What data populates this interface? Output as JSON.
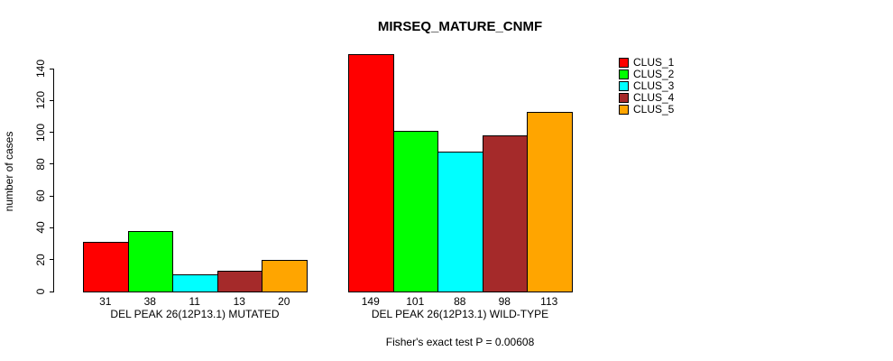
{
  "title": "MIRSEQ_MATURE_CNMF",
  "footer": "Fisher's exact test P = 0.00608",
  "chart_data": {
    "type": "bar",
    "title": "MIRSEQ_MATURE_CNMF",
    "ylabel": "number of cases",
    "xlabel": "",
    "ylim": [
      0,
      150
    ],
    "yticks": [
      0,
      20,
      40,
      60,
      80,
      100,
      120,
      140
    ],
    "grid": false,
    "legend_position": "top-right",
    "series": [
      {
        "name": "CLUS_1",
        "color": "#FF0000"
      },
      {
        "name": "CLUS_2",
        "color": "#00FF00"
      },
      {
        "name": "CLUS_3",
        "color": "#00FFFF"
      },
      {
        "name": "CLUS_4",
        "color": "#A52A2A"
      },
      {
        "name": "CLUS_5",
        "color": "#FFA500"
      }
    ],
    "groups": [
      {
        "label": "DEL PEAK 26(12P13.1) MUTATED",
        "values": [
          31,
          38,
          11,
          13,
          20
        ]
      },
      {
        "label": "DEL PEAK 26(12P13.1) WILD-TYPE",
        "values": [
          149,
          101,
          88,
          98,
          113
        ]
      }
    ],
    "annotation": "Fisher's exact test P = 0.00608"
  }
}
